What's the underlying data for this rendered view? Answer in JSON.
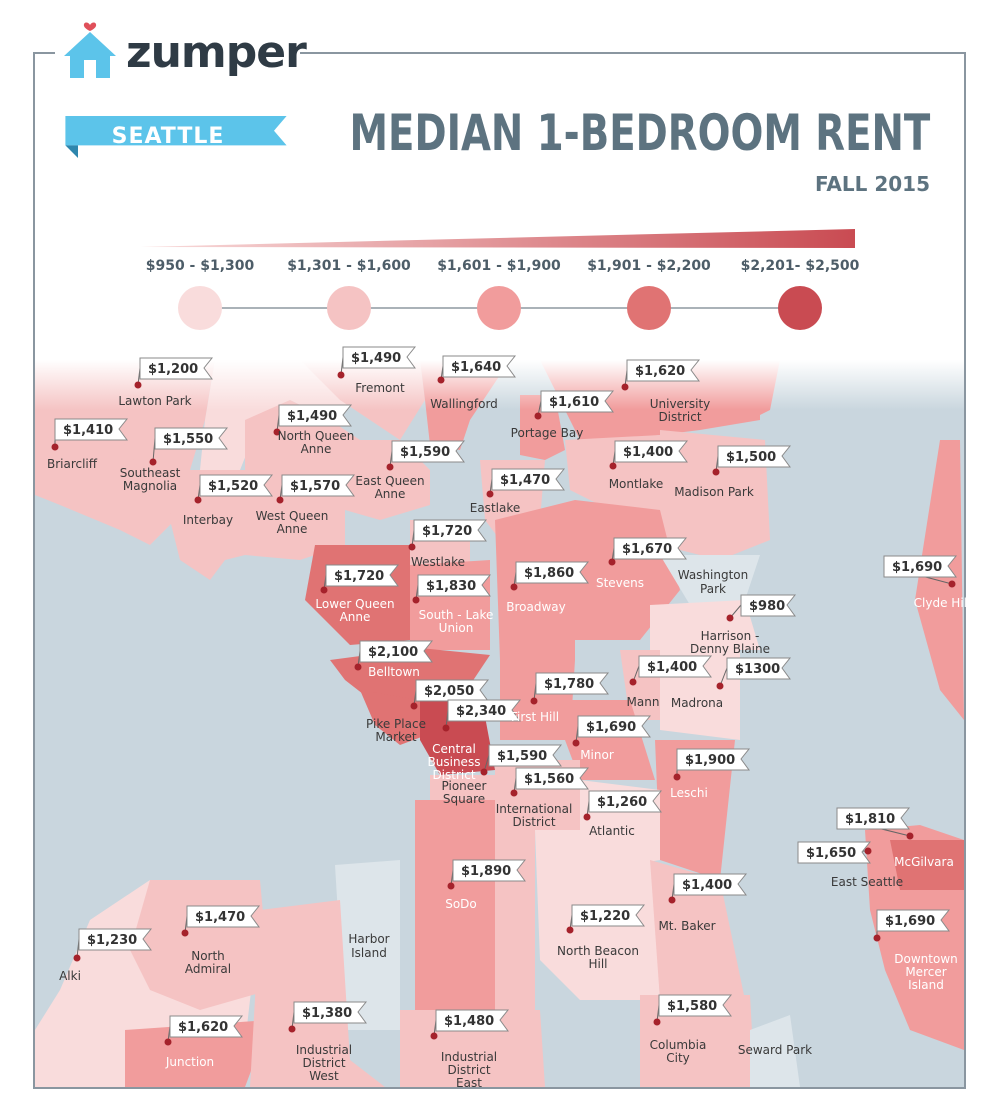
{
  "brand": {
    "name": "zumper",
    "logo_icon": "house-heart-icon"
  },
  "city_label": "SEATTLE",
  "title": "MEDIAN 1-BEDROOM RENT",
  "subtitle": "FALL 2015",
  "colors": {
    "tier1": "#f9dcdc",
    "tier2": "#f5c3c3",
    "tier3": "#f19c9c",
    "tier4": "#e07373",
    "tier5": "#c94b52",
    "water": "#c9d6de",
    "park": "#dde5ea",
    "brand_blue": "#5cc4ea",
    "title_gray": "#5d7380"
  },
  "legend": [
    {
      "label": "$950 - $1,300"
    },
    {
      "label": "$1,301 - $1,600"
    },
    {
      "label": "$1,601 - $1,900"
    },
    {
      "label": "$1,901 - $2,200"
    },
    {
      "label": "$2,201- $2,500"
    }
  ],
  "neighborhoods": [
    {
      "name": "Lawton Park",
      "price": "$1,200"
    },
    {
      "name": "Fremont",
      "price": "$1,490"
    },
    {
      "name": "Wallingford",
      "price": "$1,640"
    },
    {
      "name": "University District",
      "price": "$1,620"
    },
    {
      "name": "Briarcliff",
      "price": "$1,410"
    },
    {
      "name": "Southeast Magnolia",
      "price": "$1,550"
    },
    {
      "name": "North Queen Anne",
      "price": "$1,490"
    },
    {
      "name": "Portage Bay",
      "price": "$1,610"
    },
    {
      "name": "East Queen Anne",
      "price": "$1,590"
    },
    {
      "name": "Montlake",
      "price": "$1,400"
    },
    {
      "name": "Madison Park",
      "price": "$1,500"
    },
    {
      "name": "Interbay",
      "price": "$1,520"
    },
    {
      "name": "West Queen Anne",
      "price": "$1,570"
    },
    {
      "name": "Eastlake",
      "price": "$1,470"
    },
    {
      "name": "Westlake",
      "price": "$1,720"
    },
    {
      "name": "Stevens",
      "price": "$1,670"
    },
    {
      "name": "Lower Queen Anne",
      "price": "$1,720"
    },
    {
      "name": "Broadway",
      "price": "$1,860"
    },
    {
      "name": "South - Lake Union",
      "price": "$1,830"
    },
    {
      "name": "Clyde Hill",
      "price": "$1,690"
    },
    {
      "name": "Harrison - Denny Blaine",
      "price": "$980"
    },
    {
      "name": "Belltown",
      "price": "$2,100"
    },
    {
      "name": "Mann",
      "price": "$1,400"
    },
    {
      "name": "Madrona",
      "price": "$1300"
    },
    {
      "name": "First Hill",
      "price": "$1,780"
    },
    {
      "name": "Pike Place Market",
      "price": "$2,050"
    },
    {
      "name": "Central Business District",
      "price": "$2,340"
    },
    {
      "name": "Minor",
      "price": "$1,690"
    },
    {
      "name": "Pioneer Square",
      "price": "$1,590"
    },
    {
      "name": "Leschi",
      "price": "$1,900"
    },
    {
      "name": "International District",
      "price": "$1,560"
    },
    {
      "name": "Atlantic",
      "price": "$1,260"
    },
    {
      "name": "McGilvara",
      "price": "$1,810"
    },
    {
      "name": "East Seattle",
      "price": "$1,650"
    },
    {
      "name": "SoDo",
      "price": "$1,890"
    },
    {
      "name": "Mt. Baker",
      "price": "$1,400"
    },
    {
      "name": "North Admiral",
      "price": "$1,470"
    },
    {
      "name": "North Beacon Hill",
      "price": "$1,220"
    },
    {
      "name": "Alki",
      "price": "$1,230"
    },
    {
      "name": "Downtown Mercer Island",
      "price": "$1,690"
    },
    {
      "name": "Junction",
      "price": "$1,620"
    },
    {
      "name": "Industrial District West",
      "price": "$1,380"
    },
    {
      "name": "Industrial District East",
      "price": "$1,480"
    },
    {
      "name": "Columbia City",
      "price": "$1,580"
    }
  ],
  "unpriced_areas": [
    {
      "name": "Washington Park"
    },
    {
      "name": "Harbor Island"
    },
    {
      "name": "Seward Park"
    }
  ]
}
